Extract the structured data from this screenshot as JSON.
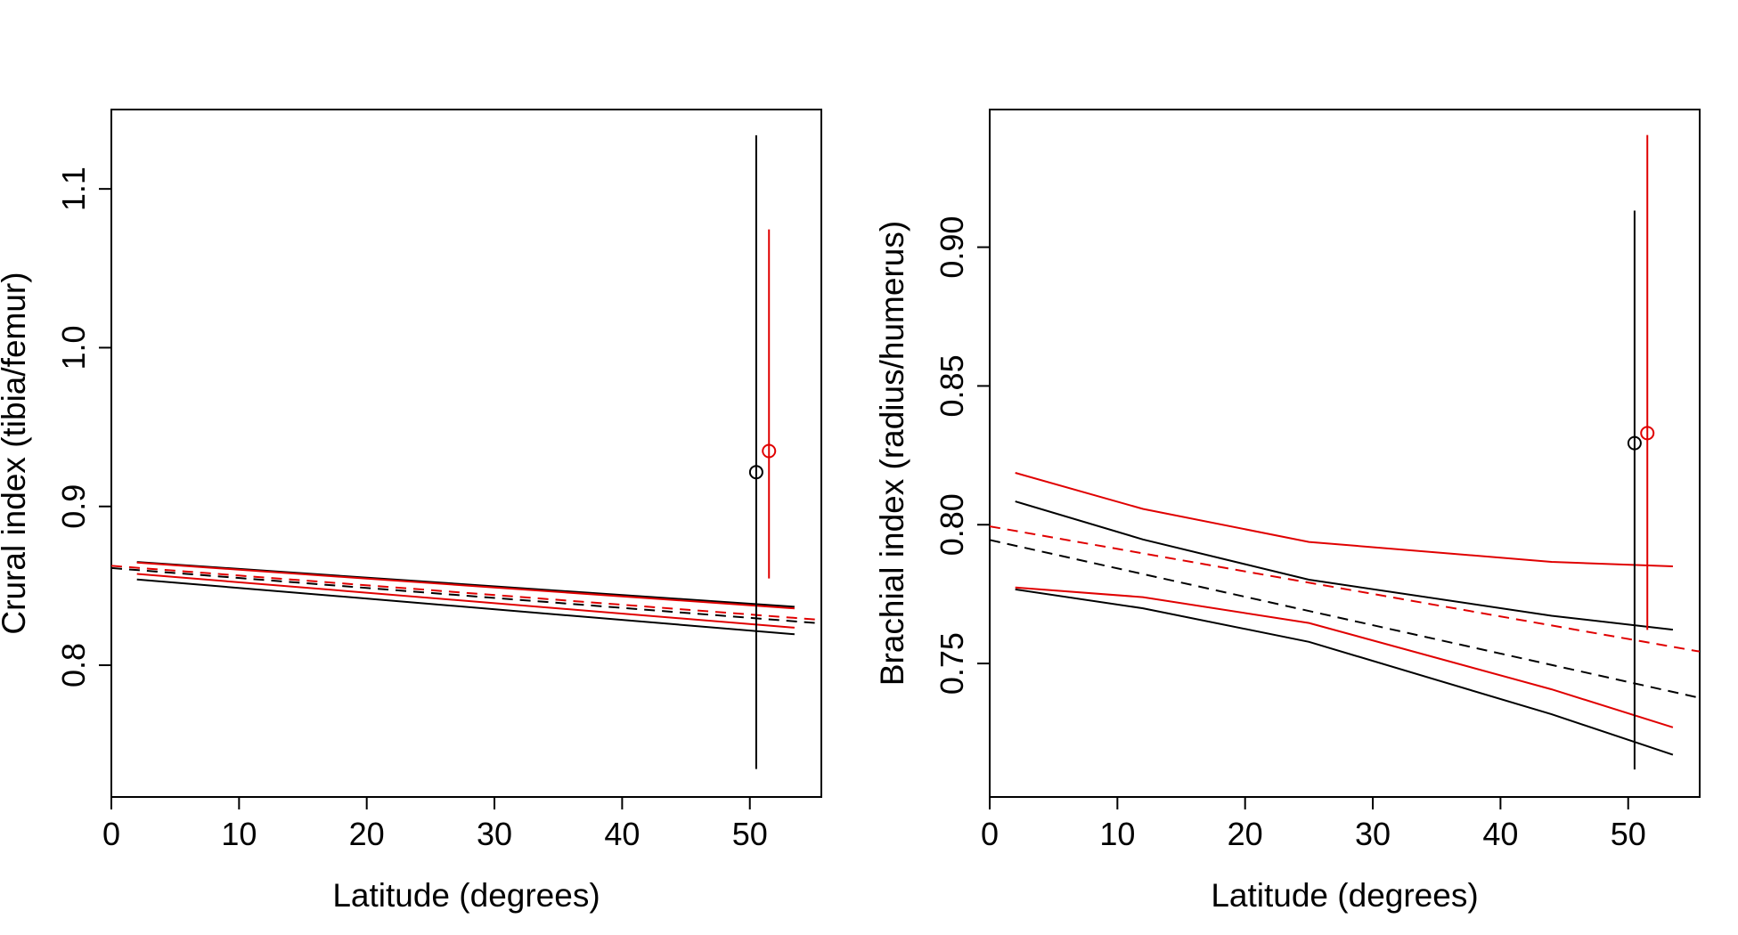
{
  "chart_data": [
    {
      "type": "line",
      "panel": "left",
      "title": "",
      "xlabel": "Latitude (degrees)",
      "ylabel": "Crural index (tibia/femur)",
      "xlim": [
        0,
        55.6
      ],
      "ylim": [
        0.717,
        1.15
      ],
      "xticks": [
        0,
        10,
        20,
        30,
        40,
        50
      ],
      "xtick_labels": [
        "0",
        "10",
        "20",
        "30",
        "40",
        "50"
      ],
      "yticks": [
        0.8,
        0.9,
        1.0,
        1.1
      ],
      "ytick_labels": [
        "0.8",
        "0.9",
        "1.0",
        "1.1"
      ],
      "grid": false,
      "colors": {
        "group_a": "#000000",
        "group_b": "#e00000"
      },
      "series": [
        {
          "name": "black-regression",
          "color": "#000000",
          "dash": true,
          "x": [
            0,
            55.6
          ],
          "y": [
            0.8612,
            0.8263
          ]
        },
        {
          "name": "red-regression",
          "color": "#e00000",
          "dash": true,
          "x": [
            0,
            55.6
          ],
          "y": [
            0.8626,
            0.8285
          ]
        },
        {
          "name": "black-upper-ci",
          "color": "#000000",
          "dash": false,
          "x": [
            2,
            53.5
          ],
          "y": [
            0.865,
            0.8368
          ]
        },
        {
          "name": "red-upper-ci",
          "color": "#e00000",
          "dash": false,
          "x": [
            2,
            53.5
          ],
          "y": [
            0.8646,
            0.8358
          ]
        },
        {
          "name": "red-lower-ci",
          "color": "#e00000",
          "dash": false,
          "x": [
            2,
            53.5
          ],
          "y": [
            0.8575,
            0.8236
          ]
        },
        {
          "name": "black-lower-ci",
          "color": "#000000",
          "dash": false,
          "x": [
            2,
            53.5
          ],
          "y": [
            0.854,
            0.8195
          ]
        }
      ],
      "points": [
        {
          "name": "black-point",
          "color": "#000000",
          "x": 50.5,
          "y": 0.9216,
          "ymin": 0.7346,
          "ymax": 1.1338
        },
        {
          "name": "red-point",
          "color": "#e00000",
          "x": 51.5,
          "y": 0.9349,
          "ymin": 0.8546,
          "ymax": 1.0745
        }
      ]
    },
    {
      "type": "line",
      "panel": "right",
      "title": "",
      "xlabel": "Latitude (degrees)",
      "ylabel": "Brachial index (radius/humerus)",
      "xlim": [
        0,
        55.6
      ],
      "ylim": [
        0.7019,
        0.9496
      ],
      "xticks": [
        0,
        10,
        20,
        30,
        40,
        50
      ],
      "xtick_labels": [
        "0",
        "10",
        "20",
        "30",
        "40",
        "50"
      ],
      "yticks": [
        0.75,
        0.8,
        0.85,
        0.9
      ],
      "ytick_labels": [
        "0.75",
        "0.80",
        "0.85",
        "0.90"
      ],
      "grid": false,
      "colors": {
        "group_a": "#000000",
        "group_b": "#e00000"
      },
      "series": [
        {
          "name": "black-regression",
          "color": "#000000",
          "dash": true,
          "x": [
            0,
            55.6
          ],
          "y": [
            0.7945,
            0.7376
          ]
        },
        {
          "name": "red-regression",
          "color": "#e00000",
          "dash": true,
          "x": [
            0,
            55.6
          ],
          "y": [
            0.7994,
            0.7543
          ]
        },
        {
          "name": "red-upper-ci",
          "color": "#e00000",
          "dash": false,
          "x": [
            2,
            12,
            25,
            44,
            53.5
          ],
          "y": [
            0.8187,
            0.8057,
            0.7938,
            0.7866,
            0.785
          ]
        },
        {
          "name": "black-upper-ci",
          "color": "#000000",
          "dash": false,
          "x": [
            2,
            12,
            25,
            44,
            53.5
          ],
          "y": [
            0.8084,
            0.7947,
            0.7802,
            0.7672,
            0.7622
          ]
        },
        {
          "name": "red-lower-ci",
          "color": "#e00000",
          "dash": false,
          "x": [
            2,
            12,
            25,
            44,
            53.5
          ],
          "y": [
            0.7774,
            0.7739,
            0.7646,
            0.7407,
            0.727
          ]
        },
        {
          "name": "black-lower-ci",
          "color": "#000000",
          "dash": false,
          "x": [
            2,
            12,
            25,
            44,
            53.5
          ],
          "y": [
            0.7767,
            0.7699,
            0.7578,
            0.7317,
            0.7171
          ]
        }
      ],
      "points": [
        {
          "name": "black-point",
          "color": "#000000",
          "x": 50.5,
          "y": 0.8294,
          "ymin": 0.7118,
          "ymax": 0.9132
        },
        {
          "name": "red-point",
          "color": "#e00000",
          "x": 51.5,
          "y": 0.833,
          "ymin": 0.7621,
          "ymax": 0.9404
        }
      ]
    }
  ]
}
